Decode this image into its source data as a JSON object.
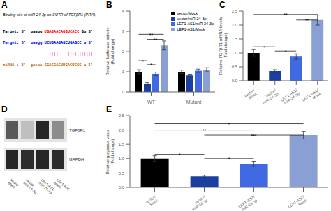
{
  "chart_data": [
    {
      "type": "text",
      "title": "A",
      "subtitle": "Binding site of miR-24-3p on 3'UTR of TGFβR1 (PITA):",
      "annotations": [
        [
          {
            "text": "Target: 5'  uaagg",
            "color": "black"
          },
          {
            "text": "UGAGAACAGGUCACC",
            "color": "red"
          },
          {
            "text": "Gu 3'",
            "color": "black"
          }
        ],
        [
          {
            "text": "Target: 5'  uaagg",
            "color": "blue"
          },
          {
            "text": "UCUGAAGAGCUGAGCC",
            "color": "blue"
          },
          {
            "text": "u 3'",
            "color": "blue"
          }
        ],
        [
          {
            "text": "  :|||    ||:||||||||",
            "color": "red"
          }
        ],
        [
          {
            "text": "miRNA : 3'  gacaa",
            "color": "#cc6600"
          },
          {
            "text": "GGACGACUUGACUCGG",
            "color": "#cc6600"
          },
          {
            "text": "u 5'",
            "color": "#cc6600"
          }
        ]
      ]
    },
    {
      "type": "bar",
      "title": "B",
      "ylabel": "Relative luciferase activity\n(Fold change)",
      "categories": [
        "WT",
        "Mutant"
      ],
      "series": [
        {
          "name": "vector/Mock",
          "color": "#000000",
          "values": [
            1.0,
            1.0
          ],
          "errors": [
            0.1,
            0.08
          ]
        },
        {
          "name": "vector/miR-24-3p",
          "color": "#1a3fa0",
          "values": [
            0.4,
            0.82
          ],
          "errors": [
            0.06,
            0.06
          ]
        },
        {
          "name": "LEF1-AS1/miR-24-3p",
          "color": "#4169e1",
          "values": [
            0.9,
            1.05
          ],
          "errors": [
            0.08,
            0.08
          ]
        },
        {
          "name": "LEF1-AS1/Mock",
          "color": "#8a9fd4",
          "values": [
            2.3,
            1.1
          ],
          "errors": [
            0.22,
            0.1
          ]
        }
      ],
      "ylim": [
        0,
        4.0
      ],
      "yticks": [
        0,
        1,
        2,
        3,
        4
      ],
      "legend": "upper right",
      "annotations": [
        {
          "category": "WT",
          "from": "vector/Mock",
          "to": "vector/miR-24-3p",
          "y": 1.55,
          "text": "*"
        },
        {
          "category": "WT",
          "from": "vector/miR-24-3p",
          "to": "LEF1-AS1/miR-24-3p",
          "y": 1.35,
          "text": "*"
        },
        {
          "category": "WT",
          "from": "vector/Mock",
          "to": "LEF1-AS1/Mock",
          "y": 2.85,
          "text": "**"
        },
        {
          "category": "WT",
          "from": "vector/miR-24-3p",
          "to": "LEF1-AS1/Mock",
          "y": 2.6,
          "text": "**"
        }
      ]
    },
    {
      "type": "bar",
      "title": "C",
      "ylabel": "Relative TGFβR1 mRNA levels\n(Fold change)",
      "categories": [
        "vector/\nMock",
        "vector/\nmiR-24-3p",
        "LEF1-AS1/\nmiR-24-3p",
        "LEF1-AS1/\nMock"
      ],
      "values": [
        1.0,
        0.35,
        0.87,
        2.18
      ],
      "errors": [
        0.12,
        0.05,
        0.1,
        0.18
      ],
      "colors": [
        "#000000",
        "#1a3fa0",
        "#4169e1",
        "#8a9fd4"
      ],
      "ylim": [
        0,
        2.5
      ],
      "yticks": [
        {
          "value": 0,
          "label": "0.0"
        },
        0.5,
        {
          "value": 1,
          "label": "1.0"
        },
        1.5,
        {
          "value": 2,
          "label": "2.0"
        },
        2.5
      ],
      "annotations": [
        {
          "from": "vector/\nMock",
          "to": "vector/\nmiR-24-3p",
          "y": 1.22,
          "text": "*"
        },
        {
          "from": "vector/\nmiR-24-3p",
          "to": "LEF1-AS1/\nmiR-24-3p",
          "y": 1.07,
          "text": "*"
        },
        {
          "from": "vector/\nMock",
          "to": "LEF1-AS1/\nMock",
          "y": 2.38,
          "text": "**"
        },
        {
          "from": "LEF1-AS1/\nmiR-24-3p",
          "to": "LEF1-AS1/\nMock",
          "y": 2.18,
          "text": "**"
        }
      ]
    },
    {
      "type": "blot",
      "title": "D",
      "categories": [
        "Vector\nMock",
        "Vector\nmiR-24-3p",
        "LEF1-AS1\nmiR-24-3p",
        "LEF1-AS1\nMock"
      ],
      "series": [
        {
          "name": "TGFβR1",
          "values": [
            0.65,
            0.25,
            0.85,
            0.45
          ]
        },
        {
          "name": "GAPDH",
          "values": [
            0.85,
            0.82,
            0.85,
            0.83
          ]
        }
      ]
    },
    {
      "type": "bar",
      "title": "E",
      "ylabel": "Relative grayscale value\n(Fold change)",
      "categories": [
        "vector/\nMock",
        "vector/\nmiR-24-3p",
        "LEF1-AS1/\nmiR-24-3p",
        "LEF1-AS1/\nMock"
      ],
      "values": [
        1.0,
        0.38,
        0.82,
        1.82
      ],
      "errors": [
        0.1,
        0.04,
        0.09,
        0.13
      ],
      "colors": [
        "#000000",
        "#1a3fa0",
        "#4169e1",
        "#8a9fd4"
      ],
      "ylim": [
        0,
        2.5
      ],
      "yticks": [
        {
          "value": 0,
          "label": "0.0"
        },
        0.5,
        {
          "value": 1,
          "label": "1.0"
        },
        1.5,
        {
          "value": 2,
          "label": "2.0"
        },
        2.5
      ],
      "annotations": [
        {
          "from": "vector/\nMock",
          "to": "vector/\nmiR-24-3p",
          "y": 1.15,
          "text": "*"
        },
        {
          "from": "vector/\nmiR-24-3p",
          "to": "LEF1-AS1/\nmiR-24-3p",
          "y": 1.0,
          "text": "*"
        },
        {
          "from": "vector/\nMock",
          "to": "LEF1-AS1/\nMock",
          "y": 2.22,
          "text": "*"
        },
        {
          "from": "vector/\nMock",
          "to": "LEF1-AS1/\nmiR-24-3p",
          "y": 2.0,
          "text": "**"
        },
        {
          "from": "vector/\nmiR-24-3p",
          "to": "LEF1-AS1/\nMock",
          "y": 1.82,
          "text": "***"
        }
      ]
    }
  ]
}
